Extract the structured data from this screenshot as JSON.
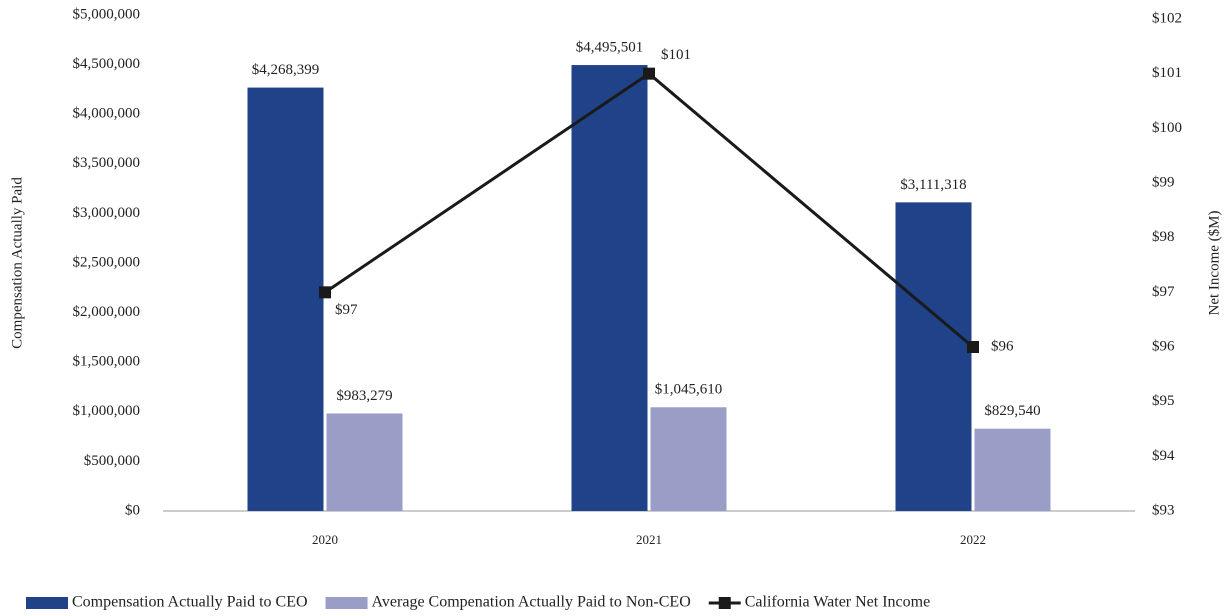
{
  "chart_data": {
    "type": "bar",
    "categories": [
      "2020",
      "2021",
      "2022"
    ],
    "series": [
      {
        "name": "Compensation Actually Paid to CEO",
        "type": "bar",
        "color": "#1f4289",
        "values": [
          4268399,
          4495501,
          3111318
        ],
        "value_labels": [
          "$4,268,399",
          "$4,495,501",
          "$3,111,318"
        ]
      },
      {
        "name": "Average Compenation Actually Paid to Non-CEO",
        "type": "bar",
        "color": "#9a9dc6",
        "values": [
          983279,
          1045610,
          829540
        ],
        "value_labels": [
          "$983,279",
          "$1,045,610",
          "$829,540"
        ]
      },
      {
        "name": "California Water Net Income",
        "type": "line",
        "axis": "y2",
        "color": "#1a1a1a",
        "values": [
          97,
          101,
          96
        ],
        "value_labels": [
          "$97",
          "$101",
          "$96"
        ]
      }
    ],
    "ylabel": "Compensation Actually Paid",
    "y2label": "Net Income ($M)",
    "ylim": [
      0,
      5000000
    ],
    "yticks": [
      {
        "value": 0,
        "label": "$0"
      },
      {
        "value": 500000,
        "label": "$500,000"
      },
      {
        "value": 1000000,
        "label": "$1,000,000"
      },
      {
        "value": 1500000,
        "label": "$1,500,000"
      },
      {
        "value": 2000000,
        "label": "$2,000,000"
      },
      {
        "value": 2500000,
        "label": "$2,500,000"
      },
      {
        "value": 3000000,
        "label": "$3,000,000"
      },
      {
        "value": 3500000,
        "label": "$3,500,000"
      },
      {
        "value": 4000000,
        "label": "$4,000,000"
      },
      {
        "value": 4500000,
        "label": "$4,500,000"
      },
      {
        "value": 5000000,
        "label": "$5,000,000"
      }
    ],
    "y2lim": [
      93,
      102
    ],
    "y2ticks": [
      {
        "value": 93,
        "label": "$93"
      },
      {
        "value": 94,
        "label": "$94"
      },
      {
        "value": 95,
        "label": "$95"
      },
      {
        "value": 96,
        "label": "$96"
      },
      {
        "value": 97,
        "label": "$97"
      },
      {
        "value": 98,
        "label": "$98"
      },
      {
        "value": 99,
        "label": "$99"
      },
      {
        "value": 100,
        "label": "$100"
      },
      {
        "value": 101,
        "label": "$101"
      },
      {
        "value": 102,
        "label": "$102"
      }
    ],
    "grid": false,
    "legend": "bottom"
  }
}
